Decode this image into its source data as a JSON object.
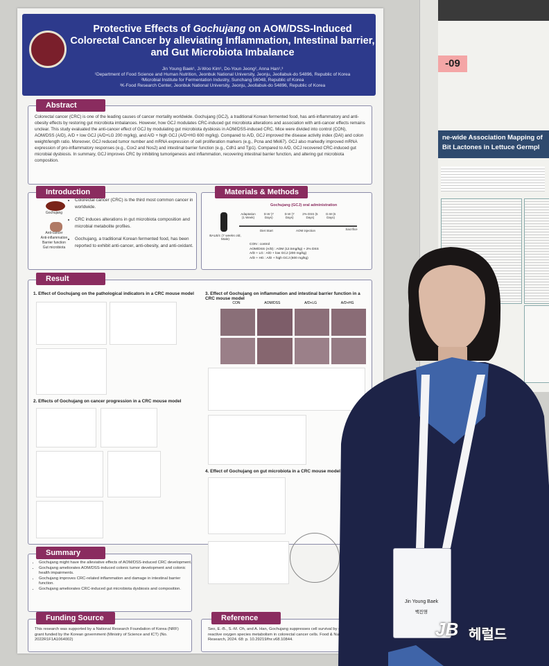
{
  "poster": {
    "title_parts": [
      "Protective Effects of ",
      "Gochujang",
      " on AOM/DSS-Induced Colorectal Cancer by alleviating Inflammation, Intestinal barrier, and Gut Microbiota Imbalance"
    ],
    "authors": "Jin Young Baek¹, Ji-Woo Kim¹, Do-Youn Jeong², Anna Han¹,³",
    "affiliations": [
      "¹Department of Food Science and Human Nutrition, Jeonbuk National University, Jeonju, Jeollabuk-do 54896, Republic of Korea",
      "²Microbial Institute for Fermentation Industry, Sunchang 56048, Republic of Korea",
      "³K-Food Research Center, Jeonbuk National University, Jeonju, Jeollabuk-do 54896, Republic of Korea"
    ],
    "abstract": {
      "heading": "Abstract",
      "text": "Colorectal cancer (CRC) is one of the leading causes of cancer mortality worldwide. Gochujang (GCJ), a traditional Korean fermented food, has anti-inflammatory and anti-obesity effects by restoring gut microbiota imbalances. However, how GCJ modulates CRC-induced gut microbiota alterations and association with anti-cancer effects remains unclear. This study evaluated the anti-cancer effect of GCJ by modulating gut microbiota dysbiosis in AOM/DSS-induced CRC. Mice were divided into control (CON), AOM/DSS (A/D), A/D + low GCJ (A/D+LG 200 mg/kg), and A/D + high GCJ (A/D+HG 600 mg/kg). Compared to A/D, GCJ improved the disease activity index (DAI) and colon weight/length ratio. Moreover, GCJ reduced tumor number and mRNA expression of cell proliferation markers (e.g., Pcna and Mki67). GCJ also markedly improved mRNA expression of pro-inflammatory responses (e.g., Cox2 and Nos2) and intestinal barrier function (e.g., Cdh1 and Tjp1). Compared to A/D, GCJ recovered CRC-induced gut microbial dysbiosis. In summary, GCJ improves CRC by inhibiting tumorigenesis and inflammation, recovering intestinal barrier function, and altering gut microbiota composition."
    },
    "introduction": {
      "heading": "Introduction",
      "image_labels": [
        "Gochujang",
        "Anti-cancer",
        "Anti-inflammation",
        "Barrier function",
        "Gut microbiota"
      ],
      "bullets": [
        "Colorectal cancer (CRC) is the third most common cancer in worldwide.",
        "CRC induces alterations in gut microbiota composition and microbial metabolite profiles.",
        "Gochujang, a traditional Korean fermented food, has been reported to exhibit anti-cancer, anti-obesity, and anti-oxidant."
      ]
    },
    "methods": {
      "heading": "Materials & Methods",
      "timeline_title": "Gochujang (GCJ) oral administration",
      "mouse": "BALB/c (7 weeks old, Male)",
      "steps": [
        "Adaptation (1 Week)",
        "D.W (7 Days)",
        "D.W (7 Days)",
        "2% DSS (5 Days)",
        "D.W (6 Days)",
        "Sacrifice"
      ],
      "events": [
        "Diet Start",
        "AOM injection"
      ],
      "groups": [
        "CON : control",
        "AOM/DSS (A/D) : AOM (12.5mg/kg) + 2% DSS",
        "A/D + LG : A/D + low GCJ (200 mg/kg)",
        "A/D + HG : A/D + high GCJ (600 mg/kg)"
      ]
    },
    "result": {
      "heading": "Result",
      "subsections": [
        "1.  Effect of Gochujang on the pathological indicators in a CRC mouse model",
        "2.  Effects of Gochujang on cancer progression in a CRC mouse model",
        "3.  Effect of Gochujang on inflammation and intestinal barrier function in a CRC mouse model",
        "4.  Effect of Gochujang on gut microbiota in a CRC mouse model"
      ],
      "legend": [
        "CON",
        "AOM/DSS",
        "A/D+LG",
        "A/D+HG"
      ]
    },
    "summary": {
      "heading": "Summary",
      "bullets": [
        "Gochujang might have the alleviative effects of AOM/DSS-induced CRC development.",
        "Gochujang ameliorates AOM/DSS-induced colonic tumor development and colonic health impairments.",
        "Gochujang improves CRC-related inflammation and damage in intestinal barrier function.",
        "Gochujang ameliorates CRC-induced gut microbiota dysbiosis and composition."
      ]
    },
    "funding": {
      "heading": "Funding Source",
      "text": "This research was supported by a National Research Foundation of Korea (NRF) grant funded by the Korean government (Ministry of Science and ICT) (No. 2022R1F1A1064002)"
    },
    "reference": {
      "heading": "Reference",
      "text": "Seo, E.-B., S.-M. Oh, and A. Han, Gochujang suppresses cell survival by changes reactive oxygen species metabolism in colorectal cancer cells. Food & Nutrition Research, 2024. 68: p. 10.29219/fnr.v68.10844."
    }
  },
  "neighbor_poster": {
    "number": "-09",
    "title": "ne-wide Association Mapping of Bit Lactones in Lettuce Germpl"
  },
  "badge": {
    "name": "Jin Young Baek",
    "korean_name": "백진영"
  },
  "watermark": {
    "logo": "JB",
    "text": "헤럴드"
  }
}
